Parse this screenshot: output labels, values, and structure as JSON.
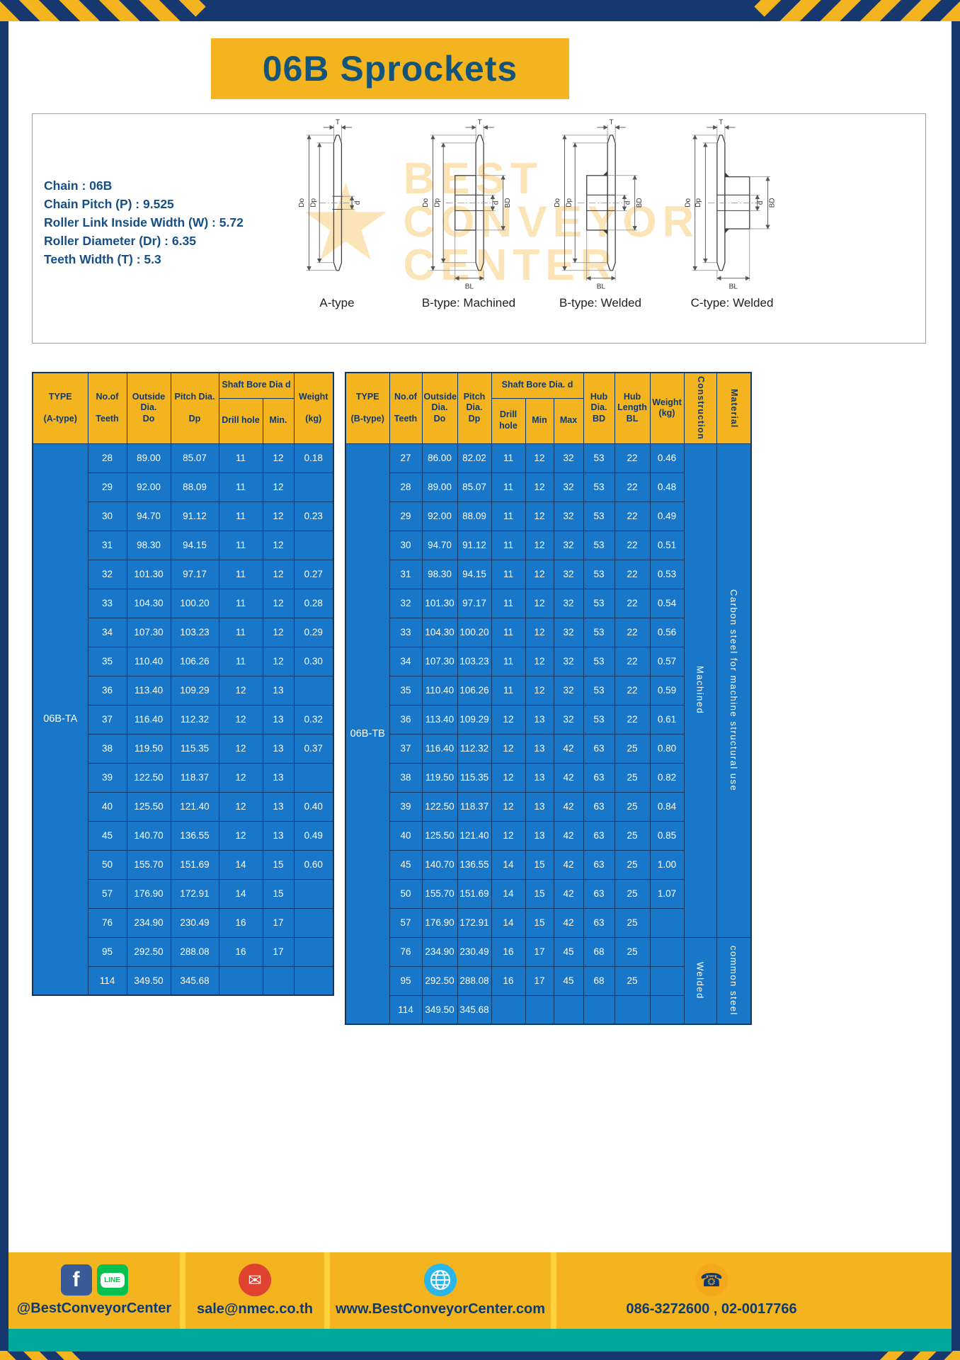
{
  "page": {
    "title": "06B Sprockets"
  },
  "specs": {
    "lines": [
      "Chain : 06B",
      "Chain Pitch (P) : 9.525",
      "Roller Link Inside Width (W) : 5.72",
      "Roller Diameter (Dr) : 6.35",
      "Teeth Width (T) : 5.3"
    ]
  },
  "diagrams": {
    "captions": [
      "A-type",
      "B-type: Machined",
      "B-type: Welded",
      "C-type: Welded"
    ],
    "watermark": {
      "line1": "BEST",
      "line2": "CONVEYOR",
      "line3": "CENTER",
      "logo": "★"
    }
  },
  "dims": {
    "t": "T",
    "do": "Do",
    "dp": "Dp",
    "d": "d",
    "bd": "BD",
    "bl": "BL"
  },
  "table_a": {
    "type_code": "06B-TA",
    "headers": {
      "type": "TYPE\n\n(A-type)",
      "teeth": "No.of\n\nTeeth",
      "outside": "Outside\nDia.\nDo",
      "pitch": "Pitch Dia.\n\nDp",
      "bore_group": "Shaft Bore Dia d",
      "drill": "Drill hole",
      "min": "Min.",
      "weight": "Weight\n\n(kg)"
    },
    "rows": [
      [
        "28",
        "89.00",
        "85.07",
        "11",
        "12",
        "0.18"
      ],
      [
        "29",
        "92.00",
        "88.09",
        "11",
        "12",
        ""
      ],
      [
        "30",
        "94.70",
        "91.12",
        "11",
        "12",
        "0.23"
      ],
      [
        "31",
        "98.30",
        "94.15",
        "11",
        "12",
        ""
      ],
      [
        "32",
        "101.30",
        "97.17",
        "11",
        "12",
        "0.27"
      ],
      [
        "33",
        "104.30",
        "100.20",
        "11",
        "12",
        "0.28"
      ],
      [
        "34",
        "107.30",
        "103.23",
        "11",
        "12",
        "0.29"
      ],
      [
        "35",
        "110.40",
        "106.26",
        "11",
        "12",
        "0.30"
      ],
      [
        "36",
        "113.40",
        "109.29",
        "12",
        "13",
        ""
      ],
      [
        "37",
        "116.40",
        "112.32",
        "12",
        "13",
        "0.32"
      ],
      [
        "38",
        "119.50",
        "115.35",
        "12",
        "13",
        "0.37"
      ],
      [
        "39",
        "122.50",
        "118.37",
        "12",
        "13",
        ""
      ],
      [
        "40",
        "125.50",
        "121.40",
        "12",
        "13",
        "0.40"
      ],
      [
        "45",
        "140.70",
        "136.55",
        "12",
        "13",
        "0.49"
      ],
      [
        "50",
        "155.70",
        "151.69",
        "14",
        "15",
        "0.60"
      ],
      [
        "57",
        "176.90",
        "172.91",
        "14",
        "15",
        ""
      ],
      [
        "76",
        "234.90",
        "230.49",
        "16",
        "17",
        ""
      ],
      [
        "95",
        "292.50",
        "288.08",
        "16",
        "17",
        ""
      ],
      [
        "114",
        "349.50",
        "345.68",
        "",
        "",
        ""
      ]
    ]
  },
  "table_b": {
    "type_code": "06B-TB",
    "headers": {
      "type": "TYPE\n\n(B-type)",
      "teeth": "No.of\n\nTeeth",
      "outside": "Outside\nDia.\nDo",
      "pitch": "Pitch\nDia.\nDp",
      "bore_group": "Shaft Bore Dia. d",
      "drill": "Drill hole",
      "min": "Min",
      "max": "Max",
      "hub_dia": "Hub\nDia.\nBD",
      "hub_len": "Hub\nLength\nBL",
      "weight": "Weight\n(kg)",
      "construction": "Construction",
      "material": "Material"
    },
    "rows": [
      [
        "27",
        "86.00",
        "82.02",
        "11",
        "12",
        "32",
        "53",
        "22",
        "0.46"
      ],
      [
        "28",
        "89.00",
        "85.07",
        "11",
        "12",
        "32",
        "53",
        "22",
        "0.48"
      ],
      [
        "29",
        "92.00",
        "88.09",
        "11",
        "12",
        "32",
        "53",
        "22",
        "0.49"
      ],
      [
        "30",
        "94.70",
        "91.12",
        "11",
        "12",
        "32",
        "53",
        "22",
        "0.51"
      ],
      [
        "31",
        "98.30",
        "94.15",
        "11",
        "12",
        "32",
        "53",
        "22",
        "0.53"
      ],
      [
        "32",
        "101.30",
        "97.17",
        "11",
        "12",
        "32",
        "53",
        "22",
        "0.54"
      ],
      [
        "33",
        "104.30",
        "100.20",
        "11",
        "12",
        "32",
        "53",
        "22",
        "0.56"
      ],
      [
        "34",
        "107.30",
        "103.23",
        "11",
        "12",
        "32",
        "53",
        "22",
        "0.57"
      ],
      [
        "35",
        "110.40",
        "106.26",
        "11",
        "12",
        "32",
        "53",
        "22",
        "0.59"
      ],
      [
        "36",
        "113.40",
        "109.29",
        "12",
        "13",
        "32",
        "53",
        "22",
        "0.61"
      ],
      [
        "37",
        "116.40",
        "112.32",
        "12",
        "13",
        "42",
        "63",
        "25",
        "0.80"
      ],
      [
        "38",
        "119.50",
        "115.35",
        "12",
        "13",
        "42",
        "63",
        "25",
        "0.82"
      ],
      [
        "39",
        "122.50",
        "118.37",
        "12",
        "13",
        "42",
        "63",
        "25",
        "0.84"
      ],
      [
        "40",
        "125.50",
        "121.40",
        "12",
        "13",
        "42",
        "63",
        "25",
        "0.85"
      ],
      [
        "45",
        "140.70",
        "136.55",
        "14",
        "15",
        "42",
        "63",
        "25",
        "1.00"
      ],
      [
        "50",
        "155.70",
        "151.69",
        "14",
        "15",
        "42",
        "63",
        "25",
        "1.07"
      ],
      [
        "57",
        "176.90",
        "172.91",
        "14",
        "15",
        "42",
        "63",
        "25",
        ""
      ],
      [
        "76",
        "234.90",
        "230.49",
        "16",
        "17",
        "45",
        "68",
        "25",
        ""
      ],
      [
        "95",
        "292.50",
        "288.08",
        "16",
        "17",
        "45",
        "68",
        "25",
        ""
      ],
      [
        "114",
        "349.50",
        "345.68",
        "",
        "",
        "",
        "",
        "",
        ""
      ]
    ],
    "spans": [
      {
        "start": 0,
        "count": 17,
        "text": "Machined",
        "name": "construction-machined-cell"
      },
      {
        "start": 0,
        "count": 17,
        "text": "Carbon steel for machine structural use",
        "name": "material-carbon-steel-cell"
      },
      {
        "start": 17,
        "count": 3,
        "text": "Welded",
        "name": "construction-welded-cell"
      },
      {
        "start": 17,
        "count": 3,
        "text": "common steel",
        "name": "material-common-steel-cell"
      }
    ]
  },
  "footer": {
    "social_label": "@BestConveyorCenter",
    "email_label": "sale@nmec.co.th",
    "website_label": "www.BestConveyorCenter.com",
    "phone_label": "086-3272600 , 02-0017766",
    "facebook_glyph": "f",
    "line_glyph": "LINE",
    "email_glyph": "✉",
    "phone_glyph": "☎"
  }
}
